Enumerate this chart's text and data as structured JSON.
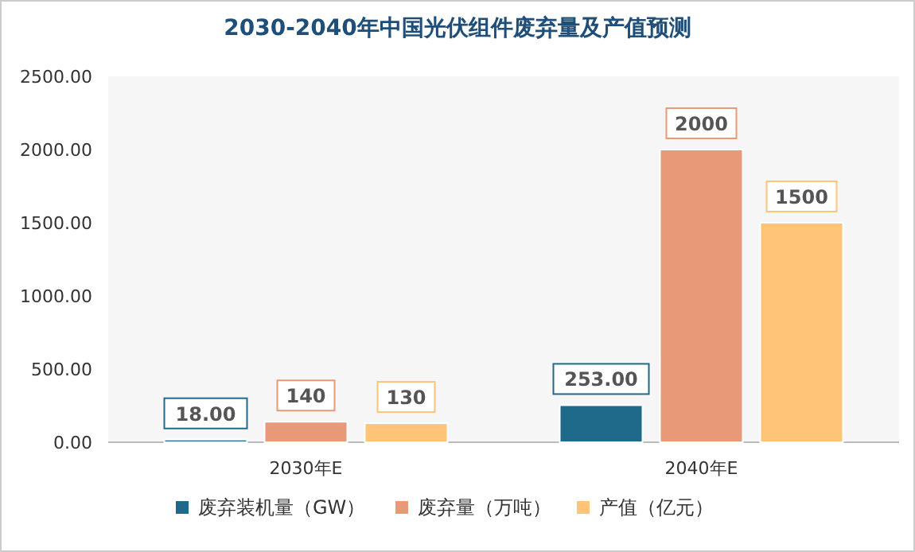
{
  "chart_data": {
    "type": "bar",
    "title": "2030-2040年中国光伏组件废弃量及产值预测",
    "categories": [
      "2030年E",
      "2040年E"
    ],
    "series": [
      {
        "name": "废弃装机量（GW）",
        "color": "#1f6a8a",
        "values": [
          18,
          253
        ],
        "value_labels": [
          "18.00",
          "253.00"
        ]
      },
      {
        "name": "废弃量（万吨）",
        "color": "#e89a78",
        "values": [
          140,
          2000
        ],
        "value_labels": [
          "140",
          "2000"
        ]
      },
      {
        "name": "产值（亿元）",
        "color": "#ffc478",
        "values": [
          130,
          1500
        ],
        "value_labels": [
          "130",
          "1500"
        ]
      }
    ],
    "ylim": [
      0,
      2500
    ],
    "yticks": [
      {
        "value": 0,
        "label": "0.00"
      },
      {
        "value": 500,
        "label": "500.00"
      },
      {
        "value": 1000,
        "label": "1000.00"
      },
      {
        "value": 1500,
        "label": "1500.00"
      },
      {
        "value": 2000,
        "label": "2000.00"
      },
      {
        "value": 2500,
        "label": "2500.00"
      }
    ],
    "legend": "bottom"
  }
}
